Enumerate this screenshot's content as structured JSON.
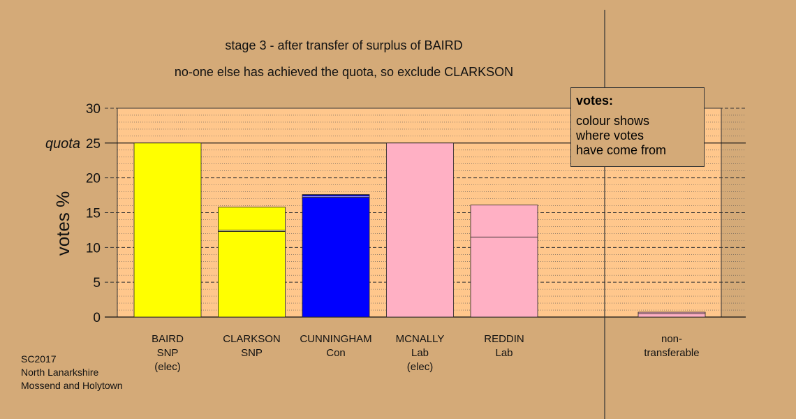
{
  "chart_data": {
    "type": "bar",
    "title_line1": "stage 3 - after transfer of surplus of BAIRD",
    "title_line2": "no-one else has achieved the quota, so exclude CLARKSON",
    "ylabel": "votes %",
    "quota_label": "quota",
    "quota": 25,
    "ylim": [
      0,
      30
    ],
    "yticks": [
      0,
      5,
      10,
      15,
      20,
      25,
      30
    ],
    "candidates": [
      {
        "name": "BAIRD",
        "party": "SNP",
        "status": "(elec)",
        "segments": [
          {
            "value": 25,
            "color": "#ffff00"
          }
        ]
      },
      {
        "name": "CLARKSON",
        "party": "SNP",
        "status": "",
        "segments": [
          {
            "value": 12.3,
            "color": "#ffff00"
          },
          {
            "value": 0.2,
            "color": "#ffffaa"
          },
          {
            "value": 3.3,
            "color": "#ffff00"
          }
        ]
      },
      {
        "name": "CUNNINGHAM",
        "party": "Con",
        "status": "",
        "segments": [
          {
            "value": 17.2,
            "color": "#0000ff"
          },
          {
            "value": 0.2,
            "color": "#8888ff"
          },
          {
            "value": 0.2,
            "color": "#0000ff"
          }
        ]
      },
      {
        "name": "MCNALLY",
        "party": "Lab",
        "status": "(elec)",
        "segments": [
          {
            "value": 25,
            "color": "#ffb0c4"
          }
        ]
      },
      {
        "name": "REDDIN",
        "party": "Lab",
        "status": "",
        "segments": [
          {
            "value": 11.5,
            "color": "#ffb0c4"
          },
          {
            "value": 4.6,
            "color": "#ffb0c4"
          }
        ]
      }
    ],
    "nontransferable": {
      "label": "non-\ntransferable",
      "segments": [
        {
          "value": 0.5,
          "color": "#ffb0c4"
        },
        {
          "value": 0.2,
          "color": "#ffb0c4"
        }
      ]
    },
    "colors": {
      "background": "#d4aa78",
      "plot_bg": "#ffc78c"
    }
  },
  "legend": {
    "title": "votes:",
    "line1": "colour shows",
    "line2": "where votes",
    "line3": "have come from"
  },
  "footnote": {
    "line1": "SC2017",
    "line2": "North Lanarkshire",
    "line3": "Mossend and Holytown"
  }
}
